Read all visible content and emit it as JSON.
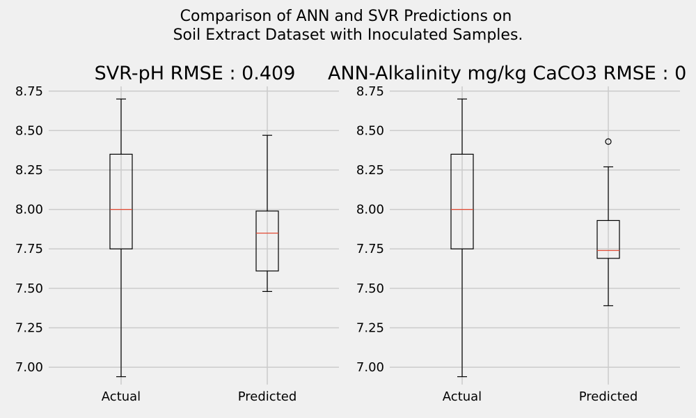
{
  "figure": {
    "title_line1": "Comparison of ANN and SVR Predictions on",
    "title_line2": "Soil Extract Dataset with Inoculated Samples."
  },
  "chart_data": [
    {
      "type": "boxplot",
      "title": "SVR-pH RMSE : 0.409",
      "categories": [
        "Actual",
        "Predicted"
      ],
      "ylim": [
        6.89,
        8.78
      ],
      "yticks": [
        "7.00",
        "7.25",
        "7.50",
        "7.75",
        "8.00",
        "8.25",
        "8.50",
        "8.75"
      ],
      "grid": true,
      "boxes": [
        {
          "label": "Actual",
          "whisker_low": 6.94,
          "q1": 7.75,
          "median": 8.0,
          "q3": 8.35,
          "whisker_high": 8.7,
          "fliers": []
        },
        {
          "label": "Predicted",
          "whisker_low": 7.48,
          "q1": 7.61,
          "median": 7.85,
          "q3": 7.99,
          "whisker_high": 8.47,
          "fliers": []
        }
      ]
    },
    {
      "type": "boxplot",
      "title": "ANN-Alkalinity mg/kg CaCO3 RMSE : 0",
      "categories": [
        "Actual",
        "Predicted"
      ],
      "ylim": [
        6.89,
        8.78
      ],
      "yticks": [
        "7.00",
        "7.25",
        "7.50",
        "7.75",
        "8.00",
        "8.25",
        "8.50",
        "8.75"
      ],
      "grid": true,
      "boxes": [
        {
          "label": "Actual",
          "whisker_low": 6.94,
          "q1": 7.75,
          "median": 8.0,
          "q3": 8.35,
          "whisker_high": 8.7,
          "fliers": []
        },
        {
          "label": "Predicted",
          "whisker_low": 7.39,
          "q1": 7.69,
          "median": 7.74,
          "q3": 7.93,
          "whisker_high": 8.27,
          "fliers": [
            8.43
          ]
        }
      ]
    }
  ]
}
